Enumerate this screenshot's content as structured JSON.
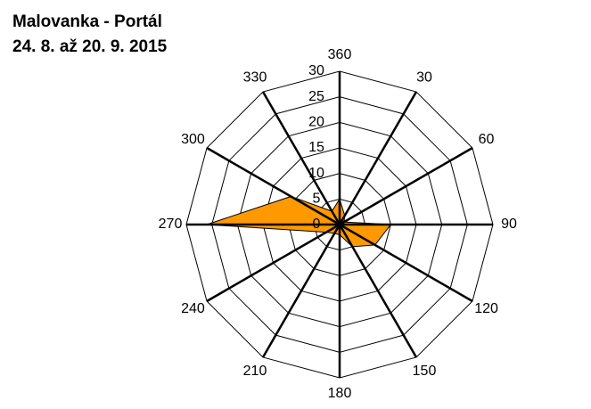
{
  "chart_data": {
    "type": "radar",
    "title": "Malovanka  - Portál",
    "subtitle": "24. 8. až 20. 9. 2015",
    "categories": [
      "360",
      "30",
      "60",
      "90",
      "120",
      "150",
      "180",
      "210",
      "240",
      "270",
      "300",
      "330"
    ],
    "values": [
      5,
      2,
      1,
      10,
      8,
      5,
      2,
      2,
      3,
      26,
      11,
      3
    ],
    "color": "#ff9900",
    "rlim": [
      0,
      30
    ],
    "rticks": [
      0,
      5,
      10,
      15,
      20,
      25,
      30
    ]
  }
}
